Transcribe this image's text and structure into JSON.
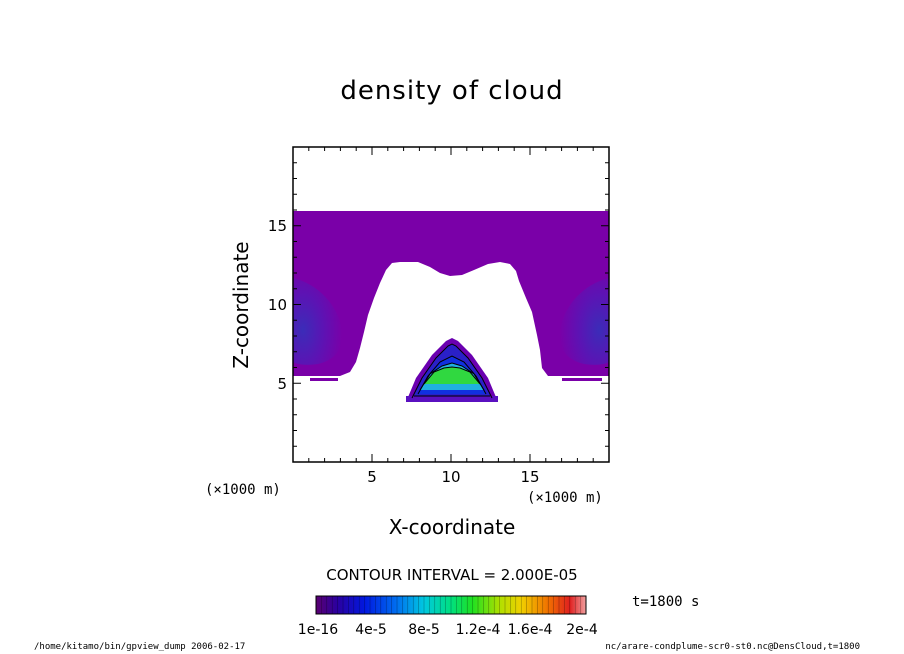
{
  "chart_data": {
    "type": "contour",
    "title": "density of cloud",
    "xlabel": "X-coordinate",
    "ylabel": "Z-coordinate",
    "x_unit": "(×1000 m)",
    "xlim": [
      0,
      20
    ],
    "ylim": [
      0,
      20
    ],
    "x_ticks": [
      "5",
      "10",
      "15"
    ],
    "y_ticks": [
      "5",
      "10",
      "15"
    ],
    "contour_interval": "CONTOUR INTERVAL = 2.000E-05",
    "colorbar": {
      "labels": [
        "1e-16",
        "4e-5",
        "8e-5",
        "1.2e-4",
        "1.6e-4",
        "2e-4"
      ],
      "min": 1e-16,
      "max": 0.0002
    },
    "time": "t=1800 s"
  },
  "footer": {
    "left": "/home/kitamo/bin/gpview_dump  2006-02-17",
    "right": "nc/arare-condplume-scr0-st0.nc@DensCloud,t=1800"
  },
  "colors": {
    "upper_layer": "#7a00a8",
    "upper_layer_inner": "#5b14b4",
    "upper_layer_core": "#3b2cb8",
    "blob_edge": "#6a00b0",
    "blob_blue": "#1030e0",
    "blob_cyan": "#20b0e0",
    "blob_green": "#30d840"
  }
}
